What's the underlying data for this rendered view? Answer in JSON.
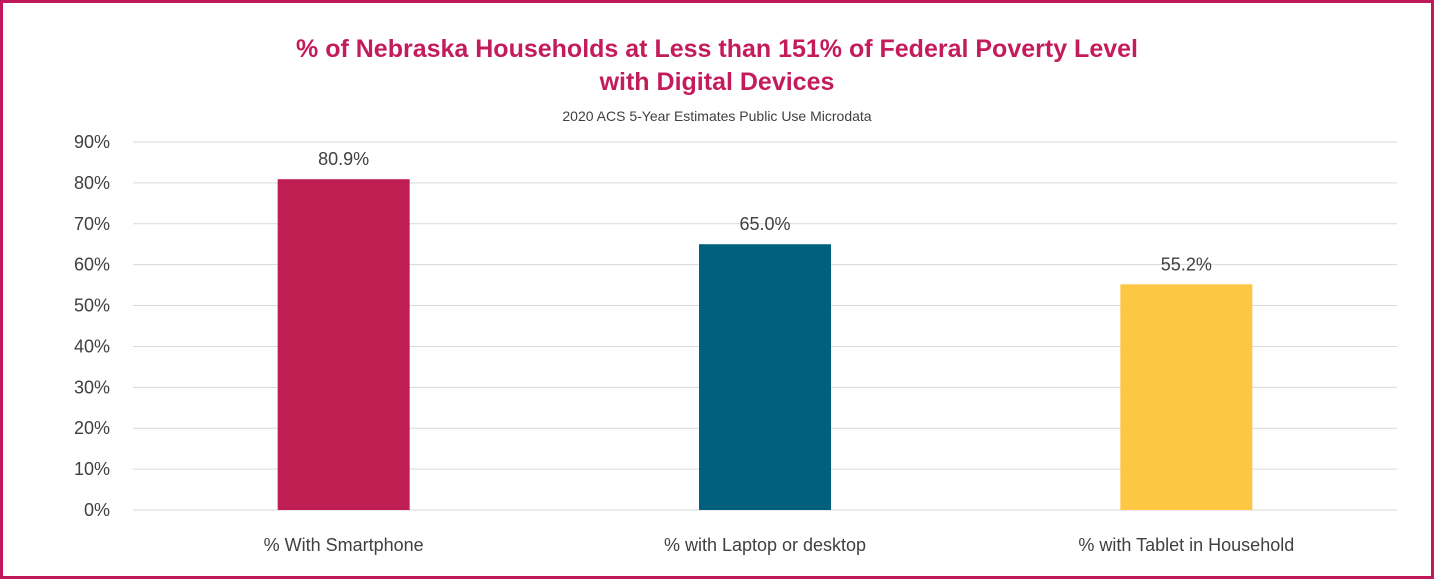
{
  "chart_data": {
    "type": "bar",
    "title_line1": "% of Nebraska Households at Less than 151% of Federal Poverty Level",
    "title_line2": "with Digital Devices",
    "subtitle": "2020 ACS 5-Year Estimates Public Use Microdata",
    "xlabel": "",
    "ylabel": "",
    "ylim": [
      0,
      90
    ],
    "yticks": [
      0,
      10,
      20,
      30,
      40,
      50,
      60,
      70,
      80,
      90
    ],
    "ytick_labels": [
      "0%",
      "10%",
      "20%",
      "30%",
      "40%",
      "50%",
      "60%",
      "70%",
      "80%",
      "90%"
    ],
    "grid": true,
    "legend": "none",
    "categories": [
      "% With Smartphone",
      "% with Laptop or desktop",
      "% with Tablet in Household"
    ],
    "values": [
      80.9,
      65.0,
      55.2
    ],
    "data_labels": [
      "80.9%",
      "65.0%",
      "55.2%"
    ],
    "colors": [
      "#be1e52",
      "#00607e",
      "#fdc743"
    ]
  },
  "style": {
    "frame_color": "#c0185a",
    "title_color": "#c41c5b",
    "grid_color": "#d9d9d9"
  }
}
